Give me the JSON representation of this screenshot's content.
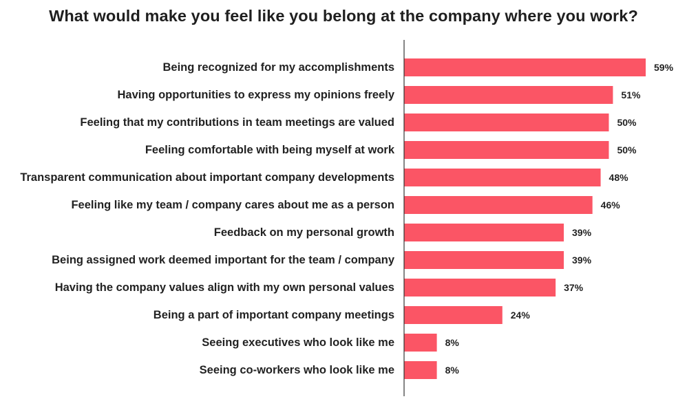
{
  "chart_data": {
    "type": "bar",
    "orientation": "horizontal",
    "title": "What would make you feel like you belong at the company where you work?",
    "categories": [
      "Being recognized for my accomplishments",
      "Having opportunities to express my opinions freely",
      "Feeling that my contributions in team meetings are valued",
      "Feeling comfortable with being myself at work",
      "Transparent communication about important company developments",
      "Feeling like my team / company cares about me as a person",
      "Feedback on my personal growth",
      "Being assigned work deemed important for the team / company",
      "Having the company values align with my own personal values",
      "Being a part of important company meetings",
      "Seeing executives who look like me",
      "Seeing co-workers who look like me"
    ],
    "values": [
      59,
      51,
      50,
      50,
      48,
      46,
      39,
      39,
      37,
      24,
      8,
      8
    ],
    "value_labels": [
      "59%",
      "51%",
      "50%",
      "50%",
      "48%",
      "46%",
      "39%",
      "39%",
      "37%",
      "24%",
      "8%",
      "8%"
    ],
    "unit": "%",
    "xlim": [
      0,
      60
    ],
    "grid": false,
    "legend": "none",
    "bar_color": "#fb5565",
    "axis_color": "#333333"
  }
}
